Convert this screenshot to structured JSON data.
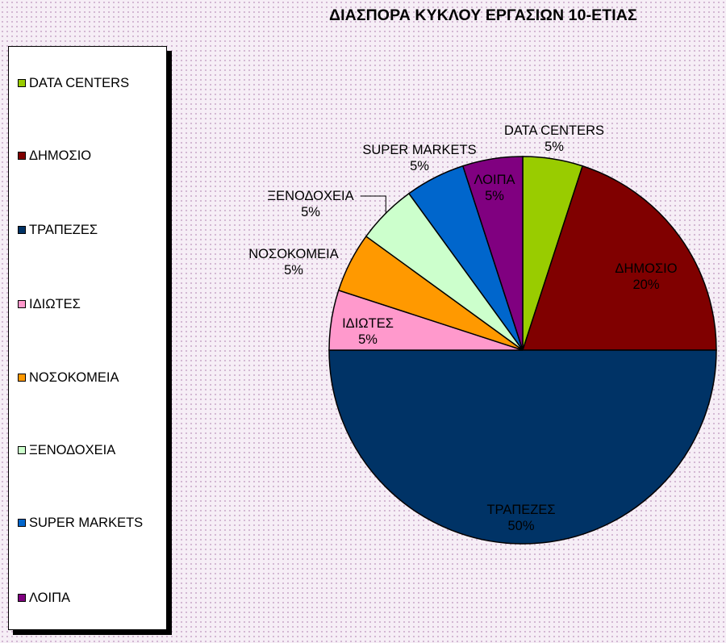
{
  "chart_data": {
    "type": "pie",
    "title": "ΔΙΑΣΠΟΡΑ ΚΥΚΛΟΥ ΕΡΓΑΣΙΩΝ 10-ΕΤΙΑΣ",
    "legend_position": "left",
    "slices": [
      {
        "label": "DATA CENTERS",
        "value": 5,
        "value_label": "5%",
        "color": "#99cc00",
        "label_text_color": "#000000"
      },
      {
        "label": "ΔΗΜΟΣΙΟ",
        "value": 20,
        "value_label": "20%",
        "color": "#800000",
        "label_text_color": "#000000"
      },
      {
        "label": "ΤΡΑΠΕΖΕΣ",
        "value": 50,
        "value_label": "50%",
        "color": "#003366",
        "label_text_color": "#000000"
      },
      {
        "label": "ΙΔΙΩΤΕΣ",
        "value": 5,
        "value_label": "5%",
        "color": "#ff99cc",
        "label_text_color": "#000000"
      },
      {
        "label": "ΝΟΣΟΚΟΜΕΙΑ",
        "value": 5,
        "value_label": "5%",
        "color": "#ff9900",
        "label_text_color": "#000000"
      },
      {
        "label": "ΞΕΝΟΔΟΧΕΙΑ",
        "value": 5,
        "value_label": "5%",
        "color": "#ccffcc",
        "label_text_color": "#000000"
      },
      {
        "label": "SUPER MARKETS",
        "value": 5,
        "value_label": "5%",
        "color": "#0066cc",
        "label_text_color": "#000000"
      },
      {
        "label": "ΛΟΙΠΑ",
        "value": 5,
        "value_label": "5%",
        "color": "#800080",
        "label_text_color": "#000000"
      }
    ]
  }
}
